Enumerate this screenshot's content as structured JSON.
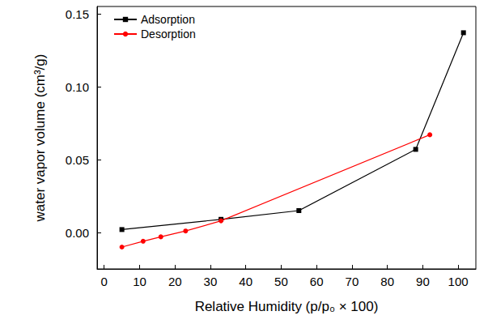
{
  "chart_data": {
    "type": "line",
    "x_label": "Relative Humidity (p/p₀ × 100)",
    "y_label": "water vapor volume (cm³/g)",
    "xlim": [
      -2,
      105
    ],
    "xticks": [
      0,
      10,
      20,
      30,
      40,
      50,
      60,
      70,
      80,
      90,
      100
    ],
    "ylim": [
      -0.025,
      0.155
    ],
    "yticks": [
      {
        "value": 0,
        "label": "0.00"
      },
      0.05,
      {
        "value": 0.1,
        "label": "0.10"
      },
      0.15
    ],
    "grid": false,
    "legend": "upper left",
    "series": [
      {
        "name": "Adsorption",
        "color": "#000000",
        "marker": "square",
        "line_style": "solid",
        "x": [
          5,
          33,
          55,
          88,
          101.5
        ],
        "values": [
          0.002,
          0.009,
          0.015,
          0.057,
          0.137
        ]
      },
      {
        "name": "Desorption",
        "color": "#ff0000",
        "marker": "circle",
        "line_style": "solid",
        "x": [
          5,
          11,
          16,
          23,
          33,
          92
        ],
        "values": [
          -0.01,
          -0.006,
          -0.003,
          0.001,
          0.008,
          0.067
        ]
      }
    ]
  }
}
